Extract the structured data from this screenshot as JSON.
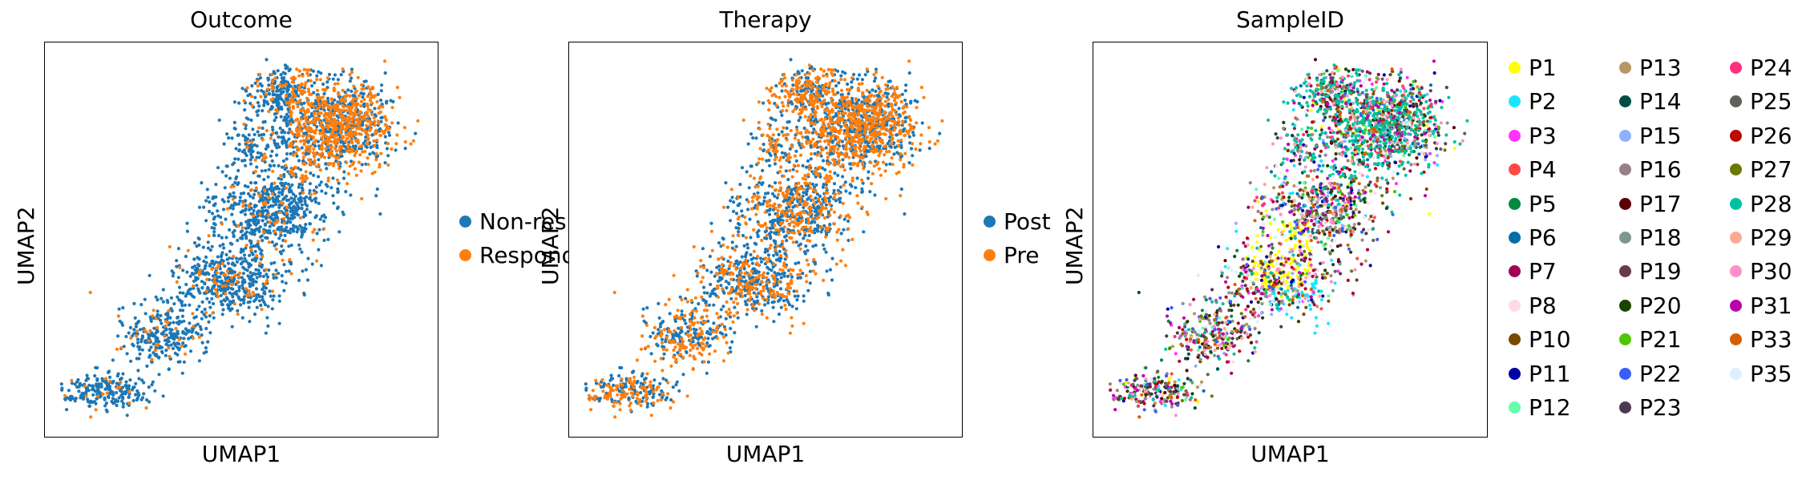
{
  "chart_data": [
    {
      "type": "scatter",
      "title": "Outcome",
      "xlabel": "UMAP1",
      "ylabel": "UMAP2",
      "legend_position": "right",
      "categories": [
        {
          "label": "Non-responder",
          "color": "#1f77b4"
        },
        {
          "label": "Responder",
          "color": "#ff7f0e"
        }
      ]
    },
    {
      "type": "scatter",
      "title": "Therapy",
      "xlabel": "UMAP1",
      "ylabel": "UMAP2",
      "legend_position": "right",
      "categories": [
        {
          "label": "Post",
          "color": "#1f77b4"
        },
        {
          "label": "Pre",
          "color": "#ff7f0e"
        }
      ]
    },
    {
      "type": "scatter",
      "title": "SampleID",
      "xlabel": "UMAP1",
      "ylabel": "UMAP2",
      "legend_position": "right",
      "categories": [
        {
          "label": "P1",
          "color": "#ffff00"
        },
        {
          "label": "P2",
          "color": "#1ce6ff"
        },
        {
          "label": "P3",
          "color": "#ff34ff"
        },
        {
          "label": "P4",
          "color": "#ff4a46"
        },
        {
          "label": "P5",
          "color": "#008941"
        },
        {
          "label": "P6",
          "color": "#006fa6"
        },
        {
          "label": "P7",
          "color": "#a30059"
        },
        {
          "label": "P8",
          "color": "#ffdbe5"
        },
        {
          "label": "P10",
          "color": "#7a4900"
        },
        {
          "label": "P11",
          "color": "#0000a6"
        },
        {
          "label": "P12",
          "color": "#63ffac"
        },
        {
          "label": "P13",
          "color": "#b79762"
        },
        {
          "label": "P14",
          "color": "#004d43"
        },
        {
          "label": "P15",
          "color": "#8fb0ff"
        },
        {
          "label": "P16",
          "color": "#997d87"
        },
        {
          "label": "P17",
          "color": "#5a0007"
        },
        {
          "label": "P18",
          "color": "#809693"
        },
        {
          "label": "P19",
          "color": "#6a3a4c"
        },
        {
          "label": "P20",
          "color": "#1b4400"
        },
        {
          "label": "P21",
          "color": "#4fc601"
        },
        {
          "label": "P22",
          "color": "#3b5dff"
        },
        {
          "label": "P23",
          "color": "#4a3b53"
        },
        {
          "label": "P24",
          "color": "#ff2f80"
        },
        {
          "label": "P25",
          "color": "#61615a"
        },
        {
          "label": "P26",
          "color": "#ba0900"
        },
        {
          "label": "P27",
          "color": "#6b7900"
        },
        {
          "label": "P28",
          "color": "#00c2a0"
        },
        {
          "label": "P29",
          "color": "#ffaa92"
        },
        {
          "label": "P30",
          "color": "#ff90c9"
        },
        {
          "label": "P31",
          "color": "#b903aa"
        },
        {
          "label": "P33",
          "color": "#d16100"
        },
        {
          "label": "P35",
          "color": "#ddefff"
        }
      ]
    }
  ]
}
